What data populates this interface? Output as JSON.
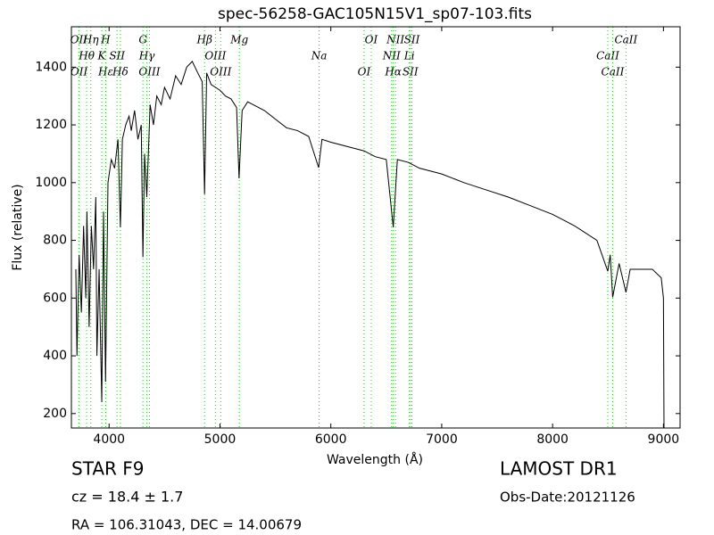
{
  "chart_data": {
    "type": "line",
    "title": "spec-56258-GAC105N15V1_sp07-103.fits",
    "x_label": "Wavelength (Å)",
    "y_label": "Flux (relative)",
    "xlim": [
      3660,
      9150
    ],
    "ylim": [
      150,
      1540
    ],
    "xticks": [
      4000,
      5000,
      6000,
      7000,
      8000,
      9000
    ],
    "yticks": [
      200,
      400,
      600,
      800,
      1000,
      1200,
      1400
    ],
    "x": [
      3700,
      3710,
      3730,
      3750,
      3770,
      3790,
      3800,
      3820,
      3840,
      3860,
      3880,
      3890,
      3910,
      3934,
      3950,
      3968,
      3990,
      4020,
      4050,
      4080,
      4102,
      4120,
      4150,
      4180,
      4200,
      4230,
      4260,
      4290,
      4305,
      4320,
      4340,
      4370,
      4400,
      4430,
      4470,
      4500,
      4550,
      4600,
      4650,
      4700,
      4750,
      4800,
      4840,
      4861,
      4880,
      4920,
      4960,
      5000,
      5050,
      5100,
      5150,
      5172,
      5200,
      5250,
      5300,
      5400,
      5500,
      5600,
      5700,
      5800,
      5890,
      5920,
      6000,
      6100,
      6200,
      6300,
      6400,
      6500,
      6563,
      6600,
      6700,
      6800,
      7000,
      7200,
      7400,
      7600,
      7800,
      8000,
      8200,
      8400,
      8498,
      8520,
      8542,
      8600,
      8662,
      8700,
      8800,
      8900,
      8980,
      9000,
      9005
    ],
    "series": [
      {
        "name": "Flux",
        "color": "#000000",
        "values": [
          700,
          400,
          750,
          550,
          850,
          600,
          900,
          500,
          850,
          700,
          950,
          400,
          700,
          240,
          900,
          310,
          1000,
          1080,
          1050,
          1150,
          845,
          1150,
          1200,
          1230,
          1180,
          1250,
          1150,
          1200,
          742,
          1100,
          950,
          1270,
          1200,
          1300,
          1270,
          1330,
          1290,
          1370,
          1340,
          1400,
          1420,
          1380,
          1350,
          960,
          1380,
          1340,
          1330,
          1320,
          1300,
          1290,
          1260,
          1015,
          1250,
          1280,
          1270,
          1250,
          1220,
          1190,
          1180,
          1160,
          1052,
          1150,
          1140,
          1130,
          1120,
          1110,
          1090,
          1080,
          845,
          1080,
          1070,
          1050,
          1030,
          1000,
          975,
          950,
          920,
          890,
          850,
          800,
          693,
          750,
          603,
          720,
          620,
          700,
          700,
          700,
          670,
          600,
          150
        ]
      }
    ],
    "line_color": "#33bb33",
    "lines": [
      {
        "label": "OII",
        "x": 3727
      },
      {
        "label": "Hθ",
        "x": 3798
      },
      {
        "label": "OII",
        "x": 3729
      },
      {
        "label": "Hη",
        "x": 3835
      },
      {
        "label": "K",
        "x": 3934
      },
      {
        "label": "Hε",
        "x": 3970
      },
      {
        "label": "H",
        "x": 3969
      },
      {
        "label": "SII",
        "x": 4072
      },
      {
        "label": "Hδ",
        "x": 4102
      },
      {
        "label": "G",
        "x": 4305
      },
      {
        "label": "Hγ",
        "x": 4341
      },
      {
        "label": "OIII",
        "x": 4364
      },
      {
        "label": "Hβ",
        "x": 4861
      },
      {
        "label": "OIII",
        "x": 4959
      },
      {
        "label": "OIII",
        "x": 5007
      },
      {
        "label": "Mg",
        "x": 5175
      },
      {
        "label": "Na",
        "x": 5894
      },
      {
        "label": "OI",
        "x": 6300
      },
      {
        "label": "OI",
        "x": 6364
      },
      {
        "label": "NII",
        "x": 6548
      },
      {
        "label": "Hα",
        "x": 6563
      },
      {
        "label": "NII",
        "x": 6583
      },
      {
        "label": "Li",
        "x": 6708
      },
      {
        "label": "SII",
        "x": 6717
      },
      {
        "label": "SII",
        "x": 6731
      },
      {
        "label": "CaII",
        "x": 8498
      },
      {
        "label": "CaII",
        "x": 8542
      },
      {
        "label": "CaII",
        "x": 8662
      }
    ],
    "footer": {
      "object": "STAR   F9",
      "redshift": "cz = 18.4 ± 1.7",
      "coords": "RA = 106.31043, DEC = 14.00679",
      "survey": "LAMOST DR1",
      "date": "Obs-Date:20121126"
    }
  }
}
